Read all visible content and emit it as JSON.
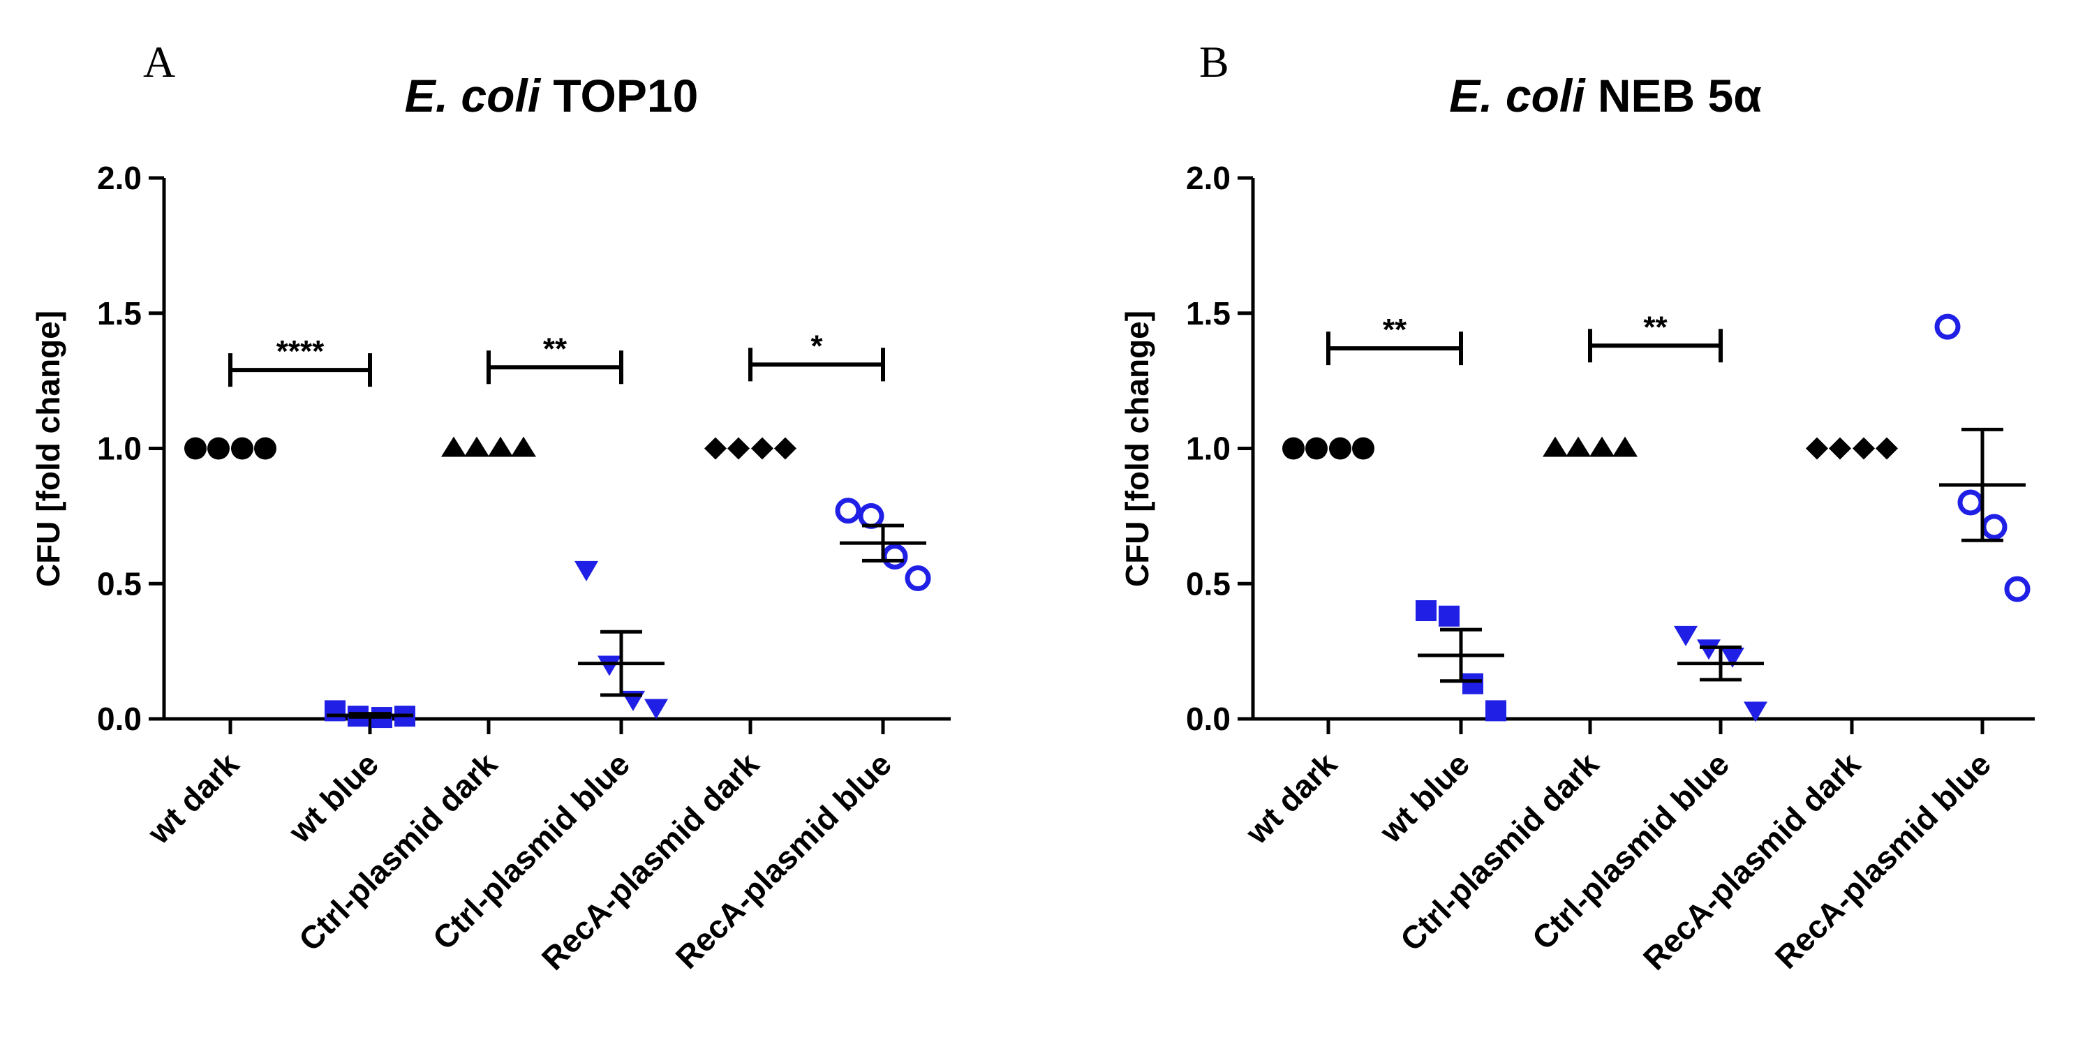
{
  "chart_data": [
    {
      "type": "scatter",
      "panel": "A",
      "title_italic": "E. coli",
      "title_rest": "TOP10",
      "ylabel": "CFU [fold change]",
      "ylim": [
        0,
        2
      ],
      "yticks": [
        "0.0",
        "0.5",
        "1.0",
        "1.5",
        "2.0"
      ],
      "yticks_values": [
        0,
        0.5,
        1.0,
        1.5,
        2.0
      ],
      "categories": [
        "wt dark",
        "wt blue",
        "Ctrl-plasmid dark",
        "Ctrl-plasmid blue",
        "RecA-plasmid dark",
        "RecA-plasmid blue"
      ],
      "groups": [
        {
          "name": "wt dark",
          "marker": "circle",
          "color": "#000000",
          "values": [
            1.0,
            1.0,
            1.0,
            1.0
          ],
          "mean": 1.0,
          "sem": 0.0
        },
        {
          "name": "wt blue",
          "marker": "square",
          "color": "#1f1fe6",
          "values": [
            0.03,
            0.01,
            0.005,
            0.01
          ],
          "mean": 0.013,
          "sem": 0.006
        },
        {
          "name": "Ctrl-plasmid dark",
          "marker": "triangle-up",
          "color": "#000000",
          "values": [
            1.0,
            1.0,
            1.0,
            1.0
          ],
          "mean": 1.0,
          "sem": 0.0
        },
        {
          "name": "Ctrl-plasmid blue",
          "marker": "triangle-down",
          "color": "#1f1fe6",
          "values": [
            0.55,
            0.2,
            0.07,
            0.04
          ],
          "mean": 0.205,
          "sem": 0.117
        },
        {
          "name": "RecA-plasmid dark",
          "marker": "diamond",
          "color": "#000000",
          "values": [
            1.0,
            1.0,
            1.0,
            1.0
          ],
          "mean": 1.0,
          "sem": 0.0
        },
        {
          "name": "RecA-plasmid blue",
          "marker": "open-circle",
          "color": "#1f1fe6",
          "values": [
            0.77,
            0.75,
            0.6,
            0.52
          ],
          "mean": 0.65,
          "sem": 0.065
        }
      ],
      "significance": [
        {
          "from": 0,
          "to": 1,
          "y": 1.29,
          "label": "****"
        },
        {
          "from": 2,
          "to": 3,
          "y": 1.3,
          "label": "**"
        },
        {
          "from": 4,
          "to": 5,
          "y": 1.31,
          "label": "*"
        }
      ]
    },
    {
      "type": "scatter",
      "panel": "B",
      "title_italic": "E. coli",
      "title_rest": "NEB 5α",
      "ylabel": "CFU [fold change]",
      "ylim": [
        0,
        2
      ],
      "yticks": [
        "0.0",
        "0.5",
        "1.0",
        "1.5",
        "2.0"
      ],
      "yticks_values": [
        0,
        0.5,
        1.0,
        1.5,
        2.0
      ],
      "categories": [
        "wt dark",
        "wt blue",
        "Ctrl-plasmid dark",
        "Ctrl-plasmid blue",
        "RecA-plasmid dark",
        "RecA-plasmid blue"
      ],
      "groups": [
        {
          "name": "wt dark",
          "marker": "circle",
          "color": "#000000",
          "values": [
            1.0,
            1.0,
            1.0,
            1.0
          ],
          "mean": 1.0,
          "sem": 0.0
        },
        {
          "name": "wt blue",
          "marker": "square",
          "color": "#1f1fe6",
          "values": [
            0.4,
            0.38,
            0.13,
            0.03
          ],
          "mean": 0.235,
          "sem": 0.095
        },
        {
          "name": "Ctrl-plasmid dark",
          "marker": "triangle-up",
          "color": "#000000",
          "values": [
            1.0,
            1.0,
            1.0,
            1.0
          ],
          "mean": 1.0,
          "sem": 0.0
        },
        {
          "name": "Ctrl-plasmid blue",
          "marker": "triangle-down",
          "color": "#1f1fe6",
          "values": [
            0.31,
            0.26,
            0.23,
            0.03
          ],
          "mean": 0.205,
          "sem": 0.06
        },
        {
          "name": "RecA-plasmid dark",
          "marker": "diamond",
          "color": "#000000",
          "values": [
            1.0,
            1.0,
            1.0,
            1.0
          ],
          "mean": 1.0,
          "sem": 0.0
        },
        {
          "name": "RecA-plasmid blue",
          "marker": "open-circle",
          "color": "#1f1fe6",
          "values": [
            1.45,
            0.8,
            0.71,
            0.48
          ],
          "mean": 0.865,
          "sem": 0.205
        }
      ],
      "significance": [
        {
          "from": 0,
          "to": 1,
          "y": 1.37,
          "label": "**"
        },
        {
          "from": 2,
          "to": 3,
          "y": 1.38,
          "label": "**"
        }
      ]
    }
  ]
}
